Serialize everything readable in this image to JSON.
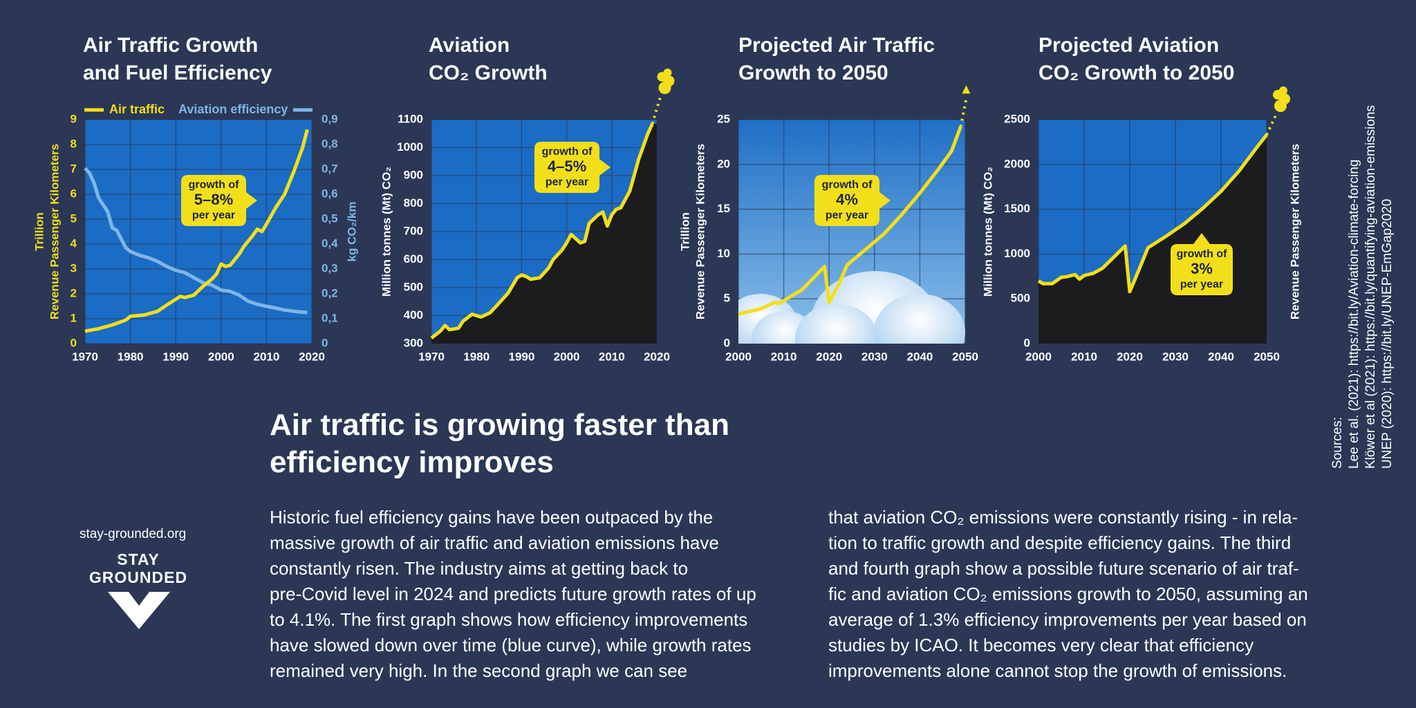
{
  "palette": {
    "background": "#2b3755",
    "plot_blue": "#1b6cc4",
    "yellow": "#f2df1a",
    "light_blue": "#7fb6e8",
    "black_area": "#1c1c1e"
  },
  "chart_data": [
    {
      "type": "line",
      "title": "Air Traffic Growth\nand Fuel Efficiency",
      "legend": [
        "Air traffic",
        "Aviation efficiency"
      ],
      "ylabel_left_1": "Trillion",
      "ylabel_left_2": "Revenue Passenger Kilometers",
      "ylabel_right": "kg CO₂/km",
      "xlim": [
        1970,
        2020
      ],
      "ylim_left": [
        0,
        9
      ],
      "ylim_right": [
        0,
        0.9
      ],
      "x_ticks": [
        "1970",
        "1980",
        "1990",
        "2000",
        "2010",
        "2020"
      ],
      "y_ticks_left": [
        "0",
        "1",
        "2",
        "3",
        "4",
        "5",
        "6",
        "7",
        "8",
        "9"
      ],
      "y_ticks_right": [
        "0",
        "0,1",
        "0,2",
        "0,3",
        "0,4",
        "0,5",
        "0,6",
        "0,7",
        "0,8",
        "0,9"
      ],
      "callout": {
        "line1": "growth of",
        "line2": "5–8%",
        "line3": "per year"
      },
      "series": [
        {
          "name": "Air traffic",
          "axis": "left",
          "x": [
            1970,
            1973,
            1976,
            1979,
            1980,
            1983,
            1986,
            1988,
            1991,
            1992,
            1994,
            1996,
            1998,
            1999,
            2000,
            2001,
            2002,
            2004,
            2005,
            2007,
            2008,
            2009,
            2010,
            2012,
            2014,
            2016,
            2018,
            2019
          ],
          "y": [
            0.5,
            0.6,
            0.75,
            0.95,
            1.1,
            1.15,
            1.3,
            1.55,
            1.9,
            1.85,
            1.95,
            2.3,
            2.6,
            2.8,
            3.2,
            3.1,
            3.15,
            3.6,
            3.9,
            4.35,
            4.6,
            4.5,
            4.8,
            5.45,
            6.0,
            6.9,
            7.9,
            8.6
          ]
        },
        {
          "name": "Aviation efficiency",
          "axis": "right",
          "x": [
            1970,
            1971,
            1972,
            1973,
            1975,
            1976,
            1977,
            1979,
            1980,
            1982,
            1984,
            1986,
            1988,
            1990,
            1992,
            1994,
            1996,
            1998,
            2000,
            2002,
            2004,
            2006,
            2008,
            2010,
            2012,
            2014,
            2016,
            2019
          ],
          "y": [
            0.705,
            0.685,
            0.645,
            0.585,
            0.53,
            0.465,
            0.455,
            0.385,
            0.37,
            0.355,
            0.345,
            0.33,
            0.31,
            0.295,
            0.285,
            0.265,
            0.245,
            0.235,
            0.215,
            0.21,
            0.195,
            0.17,
            0.158,
            0.15,
            0.143,
            0.135,
            0.13,
            0.125
          ]
        }
      ]
    },
    {
      "type": "area",
      "title": "Aviation\nCO₂ Growth",
      "ylabel": "Million tonnes (Mt) CO₂",
      "xlim": [
        1970,
        2020
      ],
      "ylim": [
        300,
        1100
      ],
      "x_ticks": [
        "1970",
        "1980",
        "1990",
        "2000",
        "2010",
        "2020"
      ],
      "y_ticks": [
        "300",
        "400",
        "500",
        "600",
        "700",
        "800",
        "900",
        "1000",
        "1100"
      ],
      "callout": {
        "line1": "growth of",
        "line2": "4–5%",
        "line3": "per year"
      },
      "series": [
        {
          "name": "",
          "x": [
            1970,
            1972,
            1973,
            1974,
            1976,
            1977,
            1979,
            1980,
            1981,
            1983,
            1985,
            1987,
            1989,
            1990,
            1991,
            1992,
            1994,
            1996,
            1997,
            1999,
            2000,
            2001,
            2003,
            2004,
            2005,
            2007,
            2008,
            2009,
            2010,
            2011,
            2012,
            2014,
            2016,
            2018,
            2019
          ],
          "y": [
            320,
            345,
            365,
            350,
            355,
            380,
            405,
            400,
            395,
            410,
            445,
            480,
            535,
            545,
            540,
            530,
            535,
            570,
            600,
            635,
            660,
            690,
            660,
            665,
            730,
            760,
            770,
            720,
            760,
            780,
            785,
            845,
            960,
            1050,
            1085
          ]
        }
      ]
    },
    {
      "type": "line",
      "title": "Projected Air Traffic\nGrowth to 2050",
      "ylabel_1": "Trillion",
      "ylabel_2": "Revenue Passenger Kilometers",
      "xlim": [
        2000,
        2050
      ],
      "ylim": [
        0,
        25
      ],
      "x_ticks": [
        "2000",
        "2010",
        "2020",
        "2030",
        "2040",
        "2050"
      ],
      "y_ticks": [
        "0",
        "5",
        "10",
        "15",
        "20",
        "25"
      ],
      "callout": {
        "line1": "growth of",
        "line2": "4%",
        "line3": "per year"
      },
      "series": [
        {
          "name": "",
          "x": [
            2000,
            2005,
            2008,
            2009,
            2010,
            2014,
            2019,
            2020,
            2022,
            2024,
            2028,
            2032,
            2036,
            2040,
            2044,
            2047,
            2049
          ],
          "y": [
            3.3,
            3.9,
            4.6,
            4.5,
            4.8,
            6.0,
            8.6,
            4.6,
            6.5,
            8.8,
            10.5,
            12.2,
            14.4,
            16.8,
            19.4,
            21.5,
            24.2
          ]
        }
      ]
    },
    {
      "type": "area",
      "title": "Projected Aviation\nCO₂ Growth to 2050",
      "ylabel": "Million tonnes (Mt) CO₂",
      "ylabel_right": "Revenue Passenger Kilometers",
      "xlim": [
        2000,
        2050
      ],
      "ylim": [
        0,
        2500
      ],
      "x_ticks": [
        "2000",
        "2010",
        "2020",
        "2030",
        "2040",
        "2050"
      ],
      "y_ticks": [
        "0",
        "500",
        "1000",
        "1500",
        "2000",
        "2500"
      ],
      "callout": {
        "line1": "growth of",
        "line2": "3%",
        "line3": "per year"
      },
      "series": [
        {
          "name": "",
          "x": [
            2000,
            2001,
            2003,
            2005,
            2006,
            2008,
            2009,
            2010,
            2012,
            2014,
            2016,
            2018,
            2019,
            2020,
            2021,
            2024,
            2028,
            2032,
            2036,
            2040,
            2044,
            2048,
            2050
          ],
          "y": [
            700,
            670,
            670,
            740,
            745,
            770,
            720,
            760,
            785,
            840,
            940,
            1040,
            1090,
            580,
            700,
            1070,
            1200,
            1340,
            1510,
            1700,
            1930,
            2200,
            2330
          ]
        }
      ]
    }
  ],
  "headline": "Air traffic is growing faster than\nefficiency improves",
  "body_left": "Historic fuel efficiency gains have been outpaced by the\nmassive growth of air traffic and aviation emissions have\nconstantly risen. The industry aims at getting back to\npre-Covid level in 2024 and predicts future growth rates of up\nto 4.1%. The first graph shows how efficiency improvements\nhave slowed down over time (blue curve), while growth rates\nremained very high. In the second graph we can see",
  "body_right": "that aviation CO₂ emissions were constantly rising - in rela-\ntion to traffic growth and despite efficiency gains. The third\nand fourth graph show a possible future scenario of air traf-\nfic and aviation CO₂ emissions growth to 2050, assuming an\naverage of 1.3% efficiency improvements per year based on\nstudies by ICAO. It becomes very clear that efficiency\nimprovements alone cannot stop the growth of emissions.",
  "brand": {
    "url": "stay-grounded.org",
    "name": "STAY\nGROUNDED"
  },
  "sources": "Sources:\nLee et al. (2021): https://bit.ly/Aviation-climate-forcing\nKlöwer et al (2021): https://bit.ly/quantifying-aviation-emissions\nUNEP (2020):  https://bit.ly/UNEP-EmGap2020"
}
